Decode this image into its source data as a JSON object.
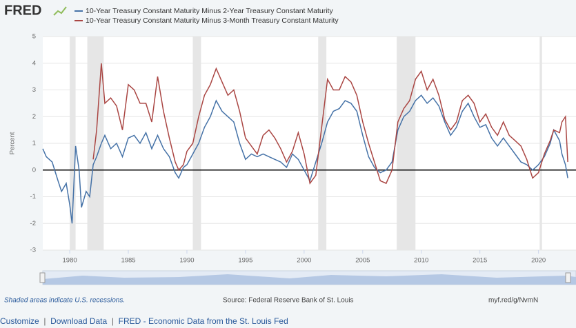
{
  "logo": "FRED",
  "footer_links": [
    "Customize",
    "Download Data",
    "FRED - Economic Data from the St. Louis Fed"
  ],
  "chart_data": {
    "type": "line",
    "ylabel": "Percent",
    "recession_note": "Shaded areas indicate U.S. recessions.",
    "source": "Source: Federal Reserve Bank of St. Louis",
    "short_url": "myf.red/g/NvmN",
    "xlim": [
      1977.7,
      2023.2
    ],
    "xticks": [
      1980,
      1985,
      1990,
      1995,
      2000,
      2005,
      2010,
      2015,
      2020
    ],
    "ylim": [
      -3,
      5
    ],
    "yticks": [
      -3,
      -2,
      -1,
      0,
      1,
      2,
      3,
      4,
      5
    ],
    "grid": true,
    "recession_color": "#e6e6e6",
    "recessions": [
      [
        1980.0,
        1980.5
      ],
      [
        1981.5,
        1982.9
      ],
      [
        1990.5,
        1991.2
      ],
      [
        2001.2,
        2001.9
      ],
      [
        2007.9,
        2009.5
      ],
      [
        2020.1,
        2020.3
      ]
    ],
    "x": [
      1977.7,
      1978,
      1978.5,
      1979,
      1979.3,
      1979.7,
      1980,
      1980.2,
      1980.5,
      1980.8,
      1981,
      1981.4,
      1981.7,
      1982,
      1982.3,
      1982.7,
      1983,
      1983.5,
      1984,
      1984.5,
      1985,
      1985.5,
      1986,
      1986.5,
      1987,
      1987.5,
      1988,
      1988.5,
      1989,
      1989.3,
      1989.7,
      1990,
      1990.5,
      1991,
      1991.5,
      1992,
      1992.5,
      1993,
      1993.5,
      1994,
      1994.5,
      1995,
      1995.5,
      1996,
      1996.5,
      1997,
      1997.5,
      1998,
      1998.5,
      1999,
      1999.5,
      2000,
      2000.5,
      2001,
      2001.5,
      2002,
      2002.5,
      2003,
      2003.5,
      2004,
      2004.5,
      2005,
      2005.5,
      2006,
      2006.5,
      2007,
      2007.5,
      2008,
      2008.5,
      2009,
      2009.5,
      2010,
      2010.5,
      2011,
      2011.5,
      2012,
      2012.5,
      2013,
      2013.5,
      2014,
      2014.5,
      2015,
      2015.5,
      2016,
      2016.5,
      2017,
      2017.5,
      2018,
      2018.5,
      2019,
      2019.5,
      2020,
      2020.5,
      2021,
      2021.3,
      2021.8,
      2022,
      2022.3,
      2022.5
    ],
    "series": [
      {
        "name": "10-Year Treasury Constant Maturity Minus 2-Year Treasury Constant Maturity",
        "color": "#4572a7",
        "values": [
          0.8,
          0.5,
          0.3,
          -0.4,
          -0.8,
          -0.5,
          -1.3,
          -2.0,
          0.9,
          0.0,
          -1.4,
          -0.8,
          -1.0,
          0.2,
          0.5,
          1.0,
          1.3,
          0.8,
          1.0,
          0.5,
          1.2,
          1.3,
          1.0,
          1.4,
          0.8,
          1.3,
          0.8,
          0.5,
          -0.1,
          -0.3,
          0.1,
          0.2,
          0.6,
          1.0,
          1.6,
          2.0,
          2.6,
          2.2,
          2.0,
          1.8,
          1.0,
          0.4,
          0.6,
          0.5,
          0.6,
          0.5,
          0.4,
          0.3,
          0.1,
          0.6,
          0.4,
          0.0,
          -0.4,
          0.3,
          1.0,
          1.8,
          2.2,
          2.3,
          2.6,
          2.5,
          2.2,
          1.3,
          0.5,
          0.1,
          -0.1,
          0.0,
          0.3,
          1.5,
          2.0,
          2.2,
          2.6,
          2.8,
          2.5,
          2.7,
          2.4,
          1.8,
          1.3,
          1.6,
          2.2,
          2.5,
          2.0,
          1.6,
          1.7,
          1.2,
          0.9,
          1.2,
          0.9,
          0.6,
          0.3,
          0.2,
          0.0,
          0.2,
          0.5,
          1.0,
          1.5,
          1.1,
          0.6,
          0.2,
          -0.3
        ]
      },
      {
        "name": "10-Year Treasury Constant Maturity Minus 3-Month Treasury Constant Maturity",
        "color": "#aa4643",
        "values": [
          null,
          null,
          null,
          null,
          null,
          null,
          null,
          null,
          null,
          null,
          null,
          null,
          null,
          0.4,
          1.5,
          4.0,
          2.5,
          2.7,
          2.4,
          1.5,
          3.2,
          3.0,
          2.5,
          2.5,
          1.8,
          3.5,
          2.2,
          1.2,
          0.3,
          0.0,
          0.2,
          0.7,
          1.0,
          2.0,
          2.8,
          3.2,
          3.8,
          3.3,
          2.8,
          3.0,
          2.2,
          1.2,
          0.9,
          0.6,
          1.3,
          1.5,
          1.2,
          0.8,
          0.3,
          0.7,
          1.4,
          0.6,
          -0.5,
          -0.2,
          1.6,
          3.4,
          3.0,
          3.0,
          3.5,
          3.3,
          2.8,
          1.8,
          1.0,
          0.3,
          -0.4,
          -0.5,
          0.0,
          1.8,
          2.3,
          2.6,
          3.4,
          3.7,
          3.0,
          3.4,
          2.8,
          1.9,
          1.5,
          1.8,
          2.6,
          2.8,
          2.5,
          1.8,
          2.1,
          1.6,
          1.3,
          1.8,
          1.3,
          1.1,
          0.9,
          0.4,
          -0.3,
          -0.1,
          0.6,
          1.1,
          1.5,
          1.4,
          1.8,
          2.0,
          0.3
        ]
      }
    ]
  }
}
